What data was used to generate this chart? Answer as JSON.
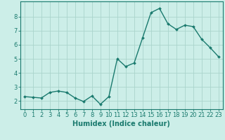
{
  "x": [
    0,
    1,
    2,
    3,
    4,
    5,
    6,
    7,
    8,
    9,
    10,
    11,
    12,
    13,
    14,
    15,
    16,
    17,
    18,
    19,
    20,
    21,
    22,
    23
  ],
  "y": [
    2.3,
    2.25,
    2.2,
    2.6,
    2.7,
    2.6,
    2.2,
    1.95,
    2.35,
    1.75,
    2.3,
    5.0,
    4.45,
    4.7,
    6.5,
    8.3,
    8.6,
    7.5,
    7.1,
    7.4,
    7.3,
    6.4,
    5.8,
    5.15
  ],
  "line_color": "#1a7a6e",
  "marker": "D",
  "markersize": 2.0,
  "linewidth": 1.0,
  "background_color": "#cceee8",
  "grid_color": "#aad4cc",
  "xlabel": "Humidex (Indice chaleur)",
  "ylabel": "",
  "xlim": [
    -0.5,
    23.5
  ],
  "ylim": [
    1.4,
    9.1
  ],
  "yticks": [
    2,
    3,
    4,
    5,
    6,
    7,
    8
  ],
  "xticks": [
    0,
    1,
    2,
    3,
    4,
    5,
    6,
    7,
    8,
    9,
    10,
    11,
    12,
    13,
    14,
    15,
    16,
    17,
    18,
    19,
    20,
    21,
    22,
    23
  ],
  "xlabel_fontsize": 7,
  "tick_fontsize": 6,
  "axis_color": "#1a7a6e",
  "spine_color": "#1a7a6e"
}
